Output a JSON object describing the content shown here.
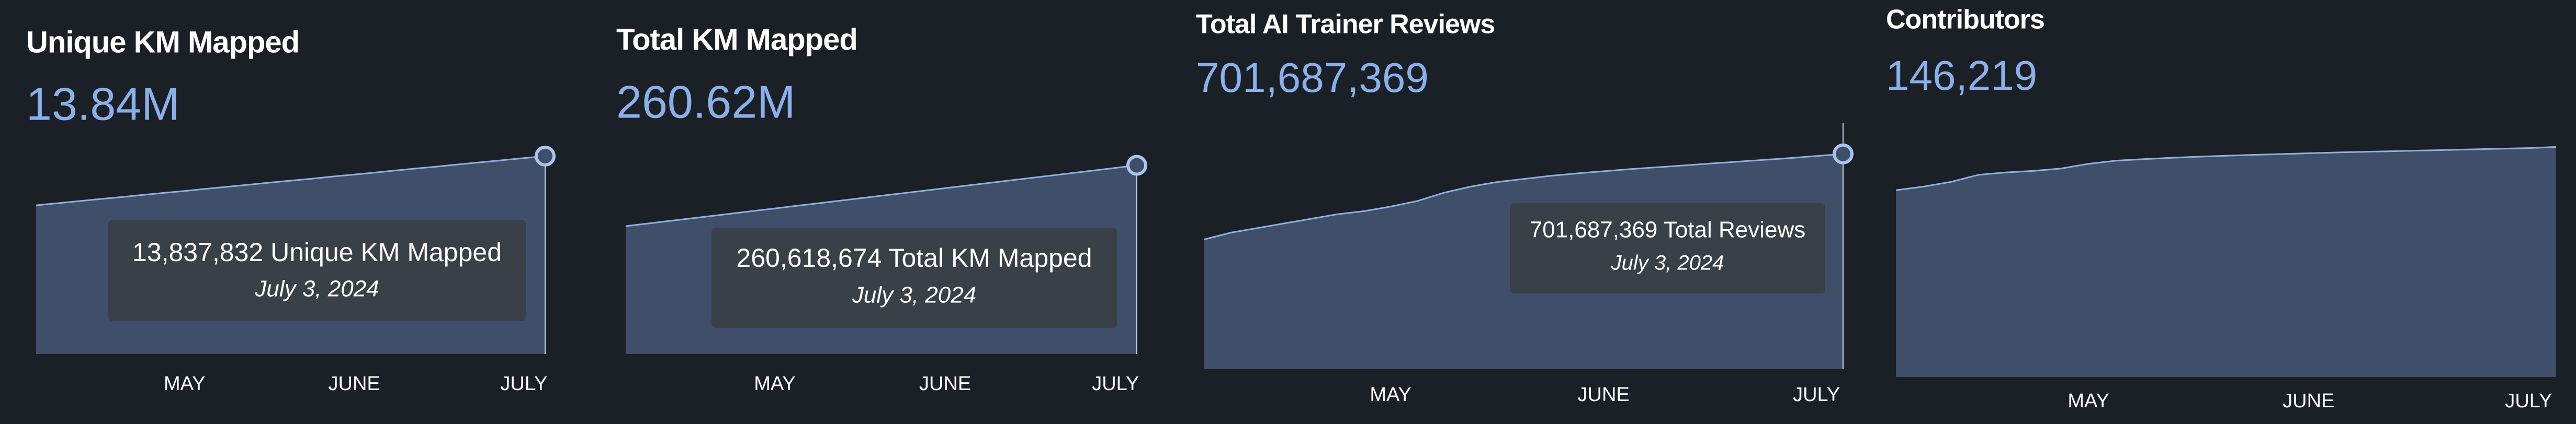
{
  "chart_data": [
    {
      "type": "area",
      "title": "Unique KM Mapped",
      "headline": "13.84M",
      "annotation": "13,837,832 Unique KM Mapped",
      "annotation_date": "July 3, 2024",
      "categories": [
        null,
        null,
        null,
        null,
        null,
        null,
        null,
        "MAY",
        null,
        null,
        null,
        null,
        null,
        null,
        null,
        "JUNE",
        null,
        null,
        null,
        null,
        null,
        null,
        null,
        "JULY",
        null
      ],
      "values": [
        10.4,
        10.54,
        10.69,
        10.83,
        10.97,
        11.12,
        11.26,
        11.4,
        11.55,
        11.69,
        11.83,
        11.98,
        12.12,
        12.26,
        12.41,
        12.55,
        12.69,
        12.84,
        12.98,
        13.12,
        13.27,
        13.41,
        13.55,
        13.7,
        13.84
      ],
      "ylim": [
        0,
        16.5
      ],
      "color": "#8fb0e0"
    },
    {
      "type": "area",
      "title": "Total KM Mapped",
      "headline": "260.62M",
      "annotation": "260,618,674 Total KM Mapped",
      "annotation_date": "July 3, 2024",
      "categories": [
        null,
        null,
        null,
        null,
        null,
        null,
        null,
        "MAY",
        null,
        null,
        null,
        null,
        null,
        null,
        null,
        "JUNE",
        null,
        null,
        null,
        null,
        null,
        null,
        null,
        "JULY",
        null
      ],
      "values": [
        176.6,
        180.1,
        183.6,
        187.1,
        190.6,
        194.1,
        197.6,
        201.1,
        204.6,
        208.1,
        211.6,
        215.1,
        218.6,
        222.1,
        225.6,
        229.1,
        232.6,
        236.1,
        239.6,
        243.1,
        246.6,
        250.1,
        253.6,
        257.1,
        260.62
      ],
      "ylim": [
        0,
        326
      ],
      "color": "#8fb0e0"
    },
    {
      "type": "area",
      "title": "Total AI Trainer Reviews",
      "headline": "701,687,369",
      "annotation": "701,687,369 Total Reviews",
      "annotation_date": "July 3, 2024",
      "categories": [
        null,
        null,
        null,
        null,
        null,
        null,
        null,
        "MAY",
        null,
        null,
        null,
        null,
        null,
        null,
        null,
        "JUNE",
        null,
        null,
        null,
        null,
        null,
        null,
        null,
        "JULY",
        null
      ],
      "values": [
        423,
        445,
        460,
        475,
        490,
        505,
        515,
        530,
        548,
        575,
        595,
        610,
        620,
        630,
        638,
        645,
        652,
        658,
        664,
        670,
        676,
        682,
        688,
        695,
        701.69
      ],
      "ylim": [
        0,
        771
      ],
      "color": "#8fb0e0"
    },
    {
      "type": "area",
      "title": "Contributors",
      "headline": "146,219",
      "categories": [
        null,
        null,
        null,
        null,
        null,
        null,
        null,
        "MAY",
        null,
        null,
        null,
        null,
        null,
        null,
        null,
        "JUNE",
        null,
        null,
        null,
        null,
        null,
        null,
        null,
        "JULY",
        null
      ],
      "values": [
        118750,
        121000,
        124000,
        128500,
        130000,
        131000,
        132500,
        135500,
        137500,
        138500,
        139300,
        140000,
        140600,
        141200,
        141700,
        142200,
        142700,
        143100,
        143500,
        143900,
        144300,
        144700,
        145100,
        145500,
        146219
      ],
      "ylim": [
        0,
        150000
      ],
      "color": "#8fb0e0"
    }
  ]
}
